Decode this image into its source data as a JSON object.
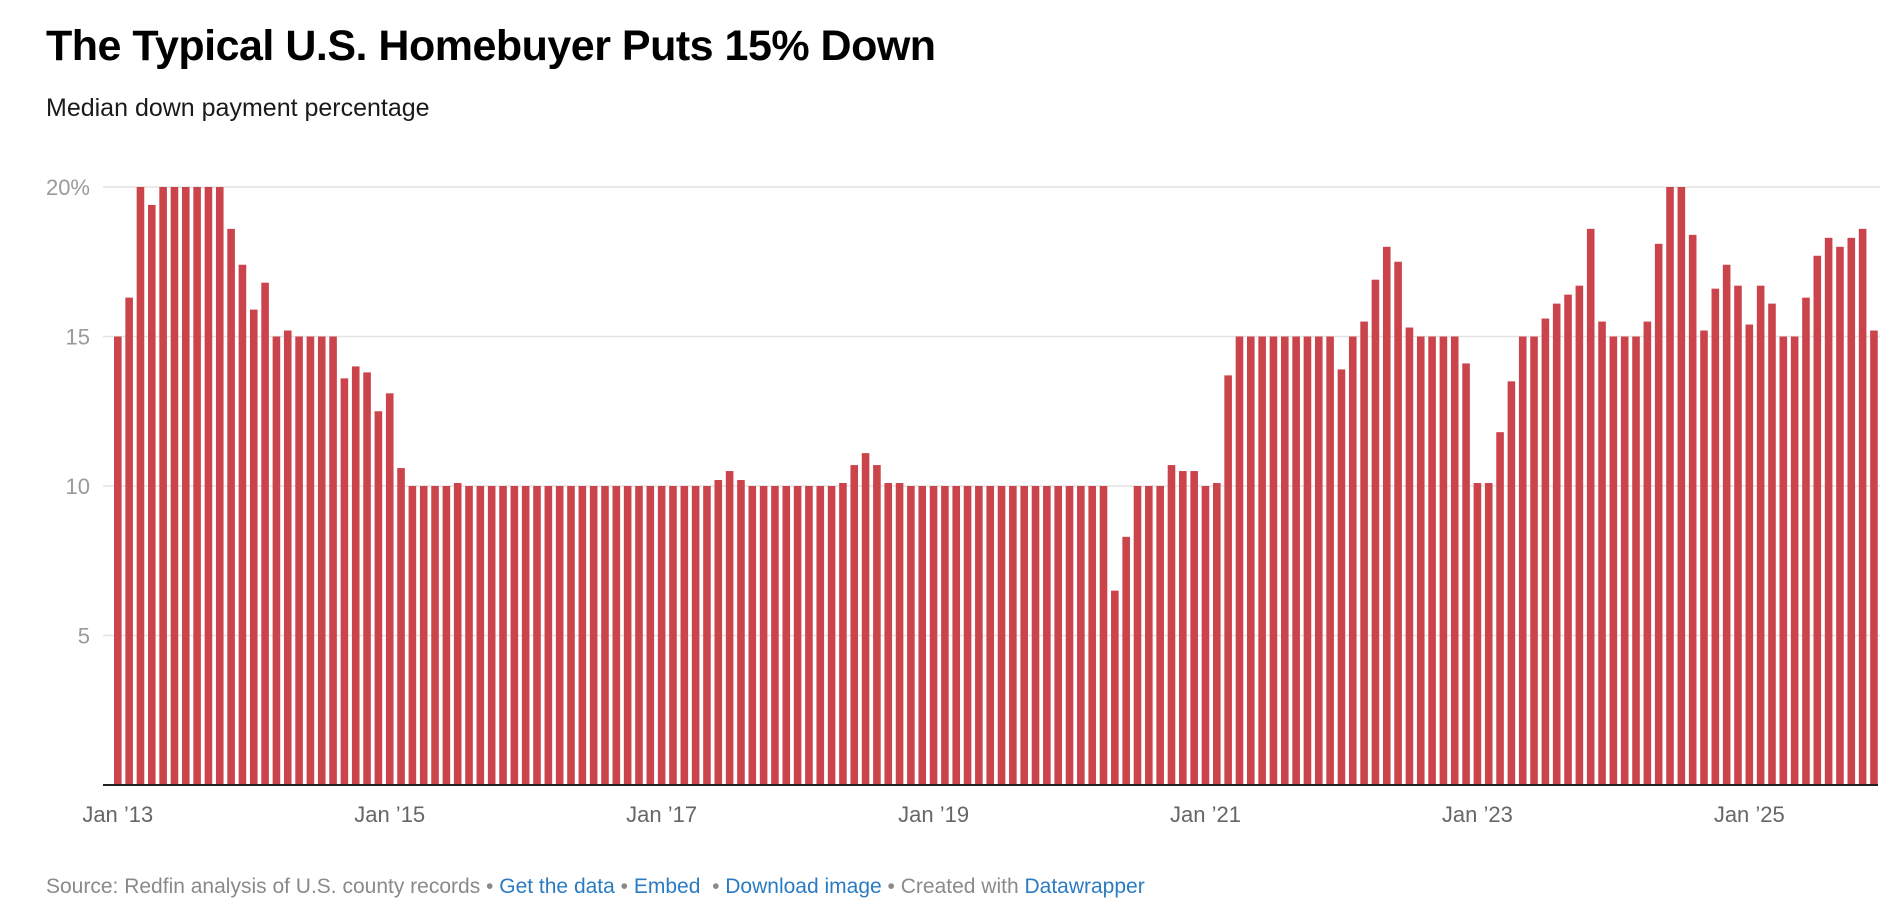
{
  "header": {
    "title": "The Typical U.S. Homebuyer Puts 15% Down",
    "subtitle": "Median down payment percentage"
  },
  "footer": {
    "source": "Source: Redfin analysis of U.S. county records",
    "separator": " • ",
    "links": [
      "Get the data",
      "Embed",
      "Download image"
    ],
    "created_with_prefix": "Created with ",
    "created_with_link": "Datawrapper",
    "link_color": "#2b7bc2"
  },
  "chart_data": {
    "type": "bar",
    "title": "The Typical U.S. Homebuyer Puts 15% Down",
    "subtitle": "Median down payment percentage",
    "xlabel": "",
    "ylabel": "",
    "ylim": [
      0,
      20
    ],
    "grid": true,
    "legend": "none",
    "bar_color": "#cc444b",
    "x_start": "2013-01",
    "x_frequency": "monthly",
    "y_ticks": [
      {
        "value": 20,
        "label": "20%"
      },
      {
        "value": 15,
        "label": "15"
      },
      {
        "value": 10,
        "label": "10"
      },
      {
        "value": 5,
        "label": "5"
      }
    ],
    "x_ticks": [
      {
        "index": 0,
        "label": "Jan ’13"
      },
      {
        "index": 24,
        "label": "Jan ’15"
      },
      {
        "index": 48,
        "label": "Jan ’17"
      },
      {
        "index": 72,
        "label": "Jan ’19"
      },
      {
        "index": 96,
        "label": "Jan ’21"
      },
      {
        "index": 120,
        "label": "Jan ’23"
      },
      {
        "index": 144,
        "label": "Jan ’25"
      }
    ],
    "values": [
      15.0,
      16.3,
      20.0,
      19.4,
      20.0,
      20.0,
      20.0,
      20.0,
      20.0,
      20.0,
      18.6,
      17.4,
      15.9,
      16.8,
      15.0,
      15.2,
      15.0,
      15.0,
      15.0,
      15.0,
      13.6,
      14.0,
      13.8,
      12.5,
      13.1,
      10.6,
      10.0,
      10.0,
      10.0,
      10.0,
      10.1,
      10.0,
      10.0,
      10.0,
      10.0,
      10.0,
      10.0,
      10.0,
      10.0,
      10.0,
      10.0,
      10.0,
      10.0,
      10.0,
      10.0,
      10.0,
      10.0,
      10.0,
      10.0,
      10.0,
      10.0,
      10.0,
      10.0,
      10.2,
      10.5,
      10.2,
      10.0,
      10.0,
      10.0,
      10.0,
      10.0,
      10.0,
      10.0,
      10.0,
      10.1,
      10.7,
      11.1,
      10.7,
      10.1,
      10.1,
      10.0,
      10.0,
      10.0,
      10.0,
      10.0,
      10.0,
      10.0,
      10.0,
      10.0,
      10.0,
      10.0,
      10.0,
      10.0,
      10.0,
      10.0,
      10.0,
      10.0,
      10.0,
      6.5,
      8.3,
      10.0,
      10.0,
      10.0,
      10.7,
      10.5,
      10.5,
      10.0,
      10.1,
      13.7,
      15.0,
      15.0,
      15.0,
      15.0,
      15.0,
      15.0,
      15.0,
      15.0,
      15.0,
      13.9,
      15.0,
      15.5,
      16.9,
      18.0,
      17.5,
      15.3,
      15.0,
      15.0,
      15.0,
      15.0,
      14.1,
      10.1,
      10.1,
      11.8,
      13.5,
      15.0,
      15.0,
      15.6,
      16.1,
      16.4,
      16.7,
      18.6,
      15.5,
      15.0,
      15.0,
      15.0,
      15.5,
      18.1,
      20.0,
      20.0,
      18.4,
      15.2,
      16.6,
      17.4,
      16.7,
      15.4,
      16.7,
      16.1,
      15.0,
      15.0,
      16.3,
      17.7,
      18.3,
      18.0,
      18.3,
      18.6,
      15.2
    ]
  }
}
